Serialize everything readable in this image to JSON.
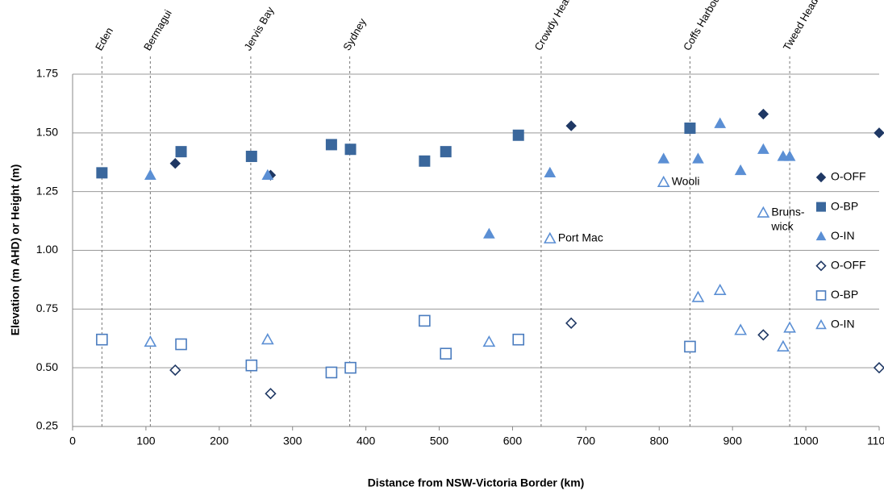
{
  "chart_data": {
    "type": "scatter",
    "xlabel": "Distance from NSW-Victoria Border (km)",
    "ylabel": "Elevation (m AHD) or Height (m)",
    "xlim": [
      0,
      1100
    ],
    "xticks": [
      0,
      100,
      200,
      300,
      400,
      500,
      600,
      700,
      800,
      900,
      1000,
      1100
    ],
    "ylim": [
      0.25,
      1.75
    ],
    "yticks": [
      {
        "value": 0.25,
        "label": "0.25"
      },
      {
        "value": 0.5,
        "label": "0.50"
      },
      {
        "value": 0.75,
        "label": "0.75"
      },
      {
        "value": 1,
        "label": "1.00"
      },
      {
        "value": 1.25,
        "label": "1.25"
      },
      {
        "value": 1.5,
        "label": "1.50"
      },
      {
        "value": 1.75,
        "label": "1.75"
      }
    ],
    "grid": true,
    "legend": "right",
    "locations": [
      {
        "name": "Eden",
        "x": 40
      },
      {
        "name": "Bermagui",
        "x": 106
      },
      {
        "name": "Jervis Bay",
        "x": 243
      },
      {
        "name": "Sydney",
        "x": 378
      },
      {
        "name": "Crowdy Head",
        "x": 639
      },
      {
        "name": "Coffs Harbour",
        "x": 842
      },
      {
        "name": "Tweed Heads",
        "x": 978
      }
    ],
    "annotations": [
      {
        "text": "Port Mac",
        "x": 651,
        "y": 1.05
      },
      {
        "text": "Wooli",
        "x": 806,
        "y": 1.29
      },
      {
        "text": [
          "Bruns-",
          "wick"
        ],
        "x": 942,
        "y": 1.16
      }
    ],
    "series": [
      {
        "name": "O-OFF",
        "color": "#1f3864",
        "marker": "diamond",
        "filled": true,
        "x": [
          140,
          270,
          680,
          942,
          1100
        ],
        "values": [
          1.37,
          1.32,
          1.53,
          1.58,
          1.5
        ]
      },
      {
        "name": "O-BP",
        "color": "#3a679c",
        "marker": "square",
        "filled": true,
        "x": [
          40,
          148,
          244,
          353,
          379,
          480,
          509,
          608,
          842
        ],
        "values": [
          1.33,
          1.42,
          1.4,
          1.45,
          1.43,
          1.38,
          1.42,
          1.49,
          1.52
        ]
      },
      {
        "name": "O-IN",
        "color": "#5b8fd4",
        "marker": "triangle",
        "filled": true,
        "x": [
          106,
          266,
          568,
          651,
          806,
          853,
          883,
          911,
          942,
          969,
          978
        ],
        "values": [
          1.32,
          1.32,
          1.07,
          1.33,
          1.39,
          1.39,
          1.54,
          1.34,
          1.43,
          1.4,
          1.4
        ]
      },
      {
        "name": "O-OFF",
        "color": "#1f3864",
        "marker": "diamond",
        "filled": false,
        "x": [
          140,
          270,
          680,
          942,
          1100
        ],
        "values": [
          0.49,
          0.39,
          0.69,
          0.64,
          0.5
        ]
      },
      {
        "name": "O-BP",
        "color": "#4a7cbf",
        "marker": "square",
        "filled": false,
        "x": [
          40,
          148,
          244,
          353,
          379,
          480,
          509,
          608,
          842
        ],
        "values": [
          0.62,
          0.6,
          0.51,
          0.48,
          0.5,
          0.7,
          0.56,
          0.62,
          0.59
        ]
      },
      {
        "name": "O-IN",
        "color": "#5b8fd4",
        "marker": "triangle",
        "filled": false,
        "x": [
          106,
          266,
          568,
          651,
          806,
          853,
          883,
          911,
          942,
          969,
          978
        ],
        "values": [
          0.61,
          0.62,
          0.61,
          1.05,
          1.29,
          0.8,
          0.83,
          0.66,
          1.16,
          0.59,
          0.67
        ]
      }
    ]
  }
}
